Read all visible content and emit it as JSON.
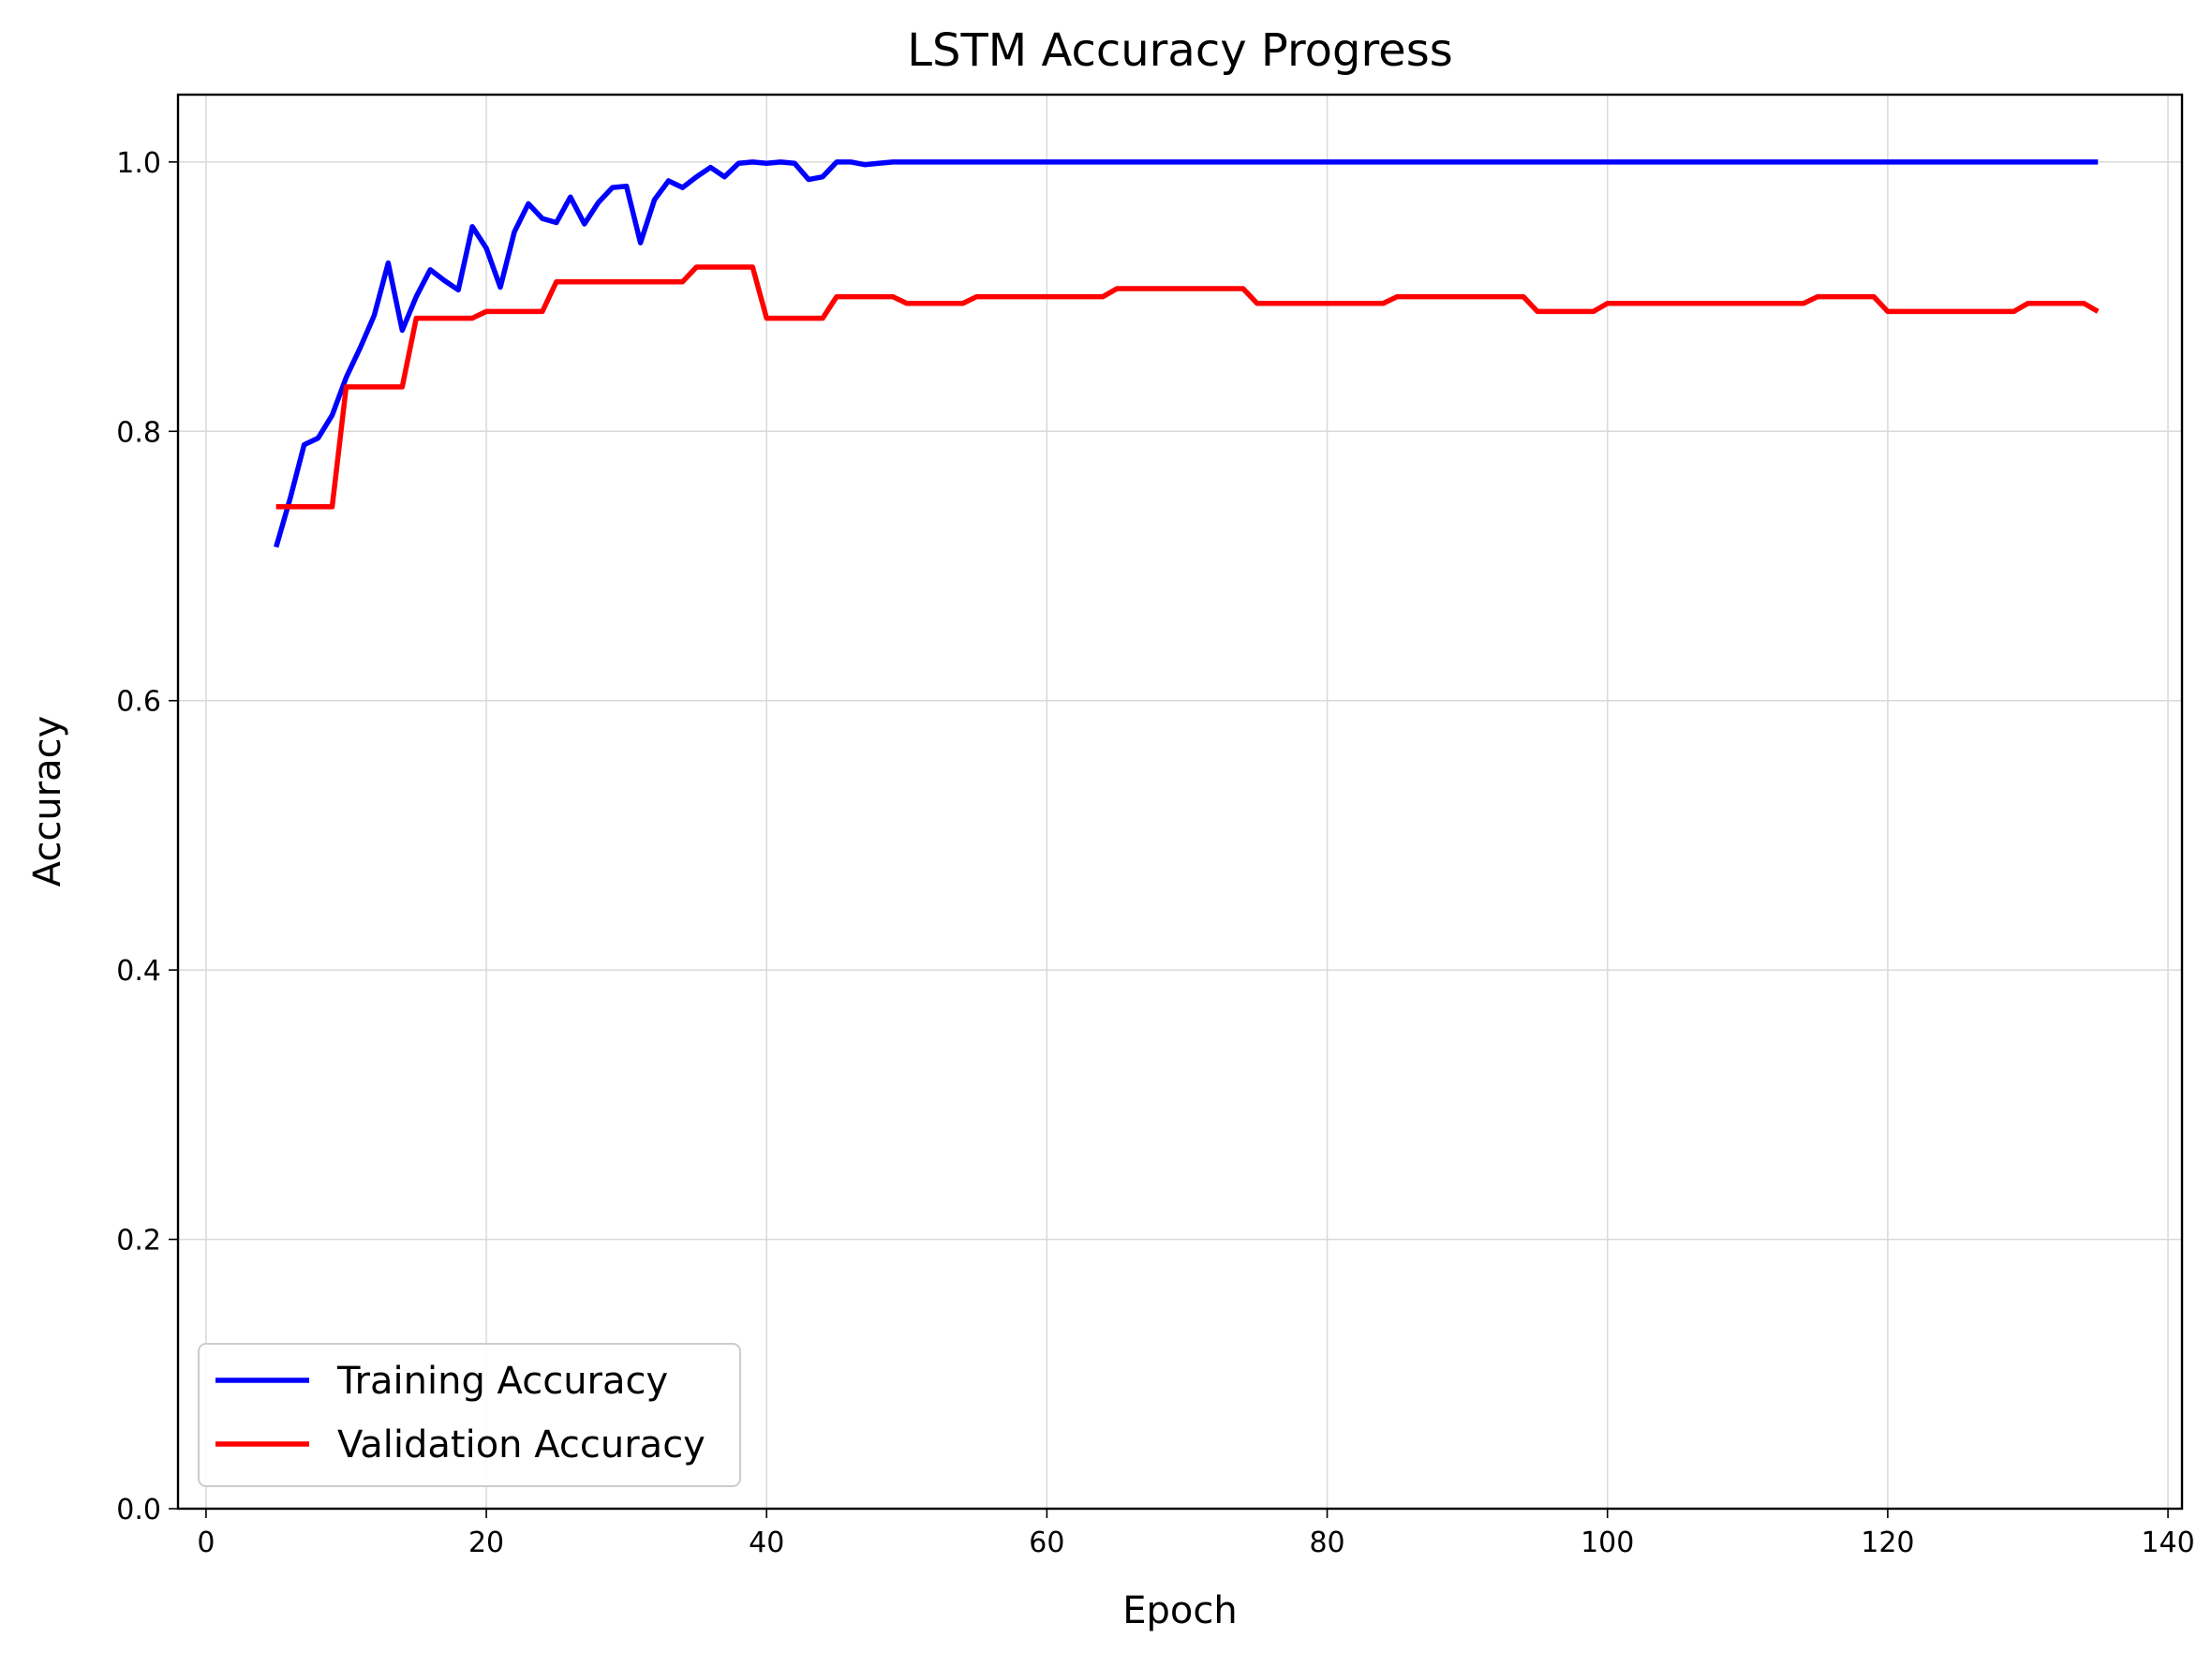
{
  "chart_data": {
    "type": "line",
    "title": "LSTM Accuracy Progress",
    "xlabel": "Epoch",
    "ylabel": "Accuracy",
    "xlim": [
      -2,
      141
    ],
    "ylim": [
      0,
      1.05
    ],
    "xticks": [
      0,
      20,
      40,
      60,
      80,
      100,
      120,
      140
    ],
    "yticks": [
      0.0,
      0.2,
      0.4,
      0.6,
      0.8,
      1.0
    ],
    "ytick_labels": [
      "0.0",
      "0.2",
      "0.4",
      "0.6",
      "0.8",
      "1.0"
    ],
    "grid": true,
    "legend_position": "lower-left",
    "series": [
      {
        "name": "Training Accuracy",
        "color": "#0000ff",
        "x": [
          5,
          6,
          7,
          8,
          9,
          10,
          11,
          12,
          13,
          14,
          15,
          16,
          17,
          18,
          19,
          20,
          21,
          22,
          23,
          24,
          25,
          26,
          27,
          28,
          29,
          30,
          31,
          32,
          33,
          34,
          35,
          36,
          37,
          38,
          39,
          40,
          41,
          42,
          43,
          44,
          45,
          46,
          47,
          48,
          49,
          135
        ],
        "y": [
          0.714,
          0.75,
          0.79,
          0.795,
          0.812,
          0.84,
          0.862,
          0.886,
          0.925,
          0.875,
          0.9,
          0.92,
          0.912,
          0.905,
          0.952,
          0.936,
          0.907,
          0.948,
          0.969,
          0.958,
          0.955,
          0.974,
          0.954,
          0.97,
          0.981,
          0.982,
          0.94,
          0.972,
          0.986,
          0.981,
          0.989,
          0.996,
          0.989,
          0.999,
          1.0,
          0.999,
          1.0,
          0.999,
          0.987,
          0.989,
          1.0,
          1.0,
          0.998,
          0.999,
          1.0,
          1.0
        ]
      },
      {
        "name": "Validation Accuracy",
        "color": "#ff0000",
        "x": [
          5,
          9,
          10,
          14,
          15,
          19,
          20,
          24,
          25,
          34,
          35,
          39,
          40,
          44,
          45,
          49,
          50,
          54,
          55,
          64,
          65,
          74,
          75,
          84,
          85,
          94,
          95,
          99,
          100,
          114,
          115,
          119,
          120,
          129,
          130,
          134,
          135
        ],
        "y": [
          0.744,
          0.744,
          0.833,
          0.833,
          0.884,
          0.884,
          0.889,
          0.889,
          0.911,
          0.911,
          0.922,
          0.922,
          0.884,
          0.884,
          0.9,
          0.9,
          0.895,
          0.895,
          0.9,
          0.9,
          0.906,
          0.906,
          0.895,
          0.895,
          0.9,
          0.9,
          0.889,
          0.889,
          0.895,
          0.895,
          0.9,
          0.9,
          0.889,
          0.889,
          0.895,
          0.895,
          0.889
        ]
      }
    ]
  }
}
